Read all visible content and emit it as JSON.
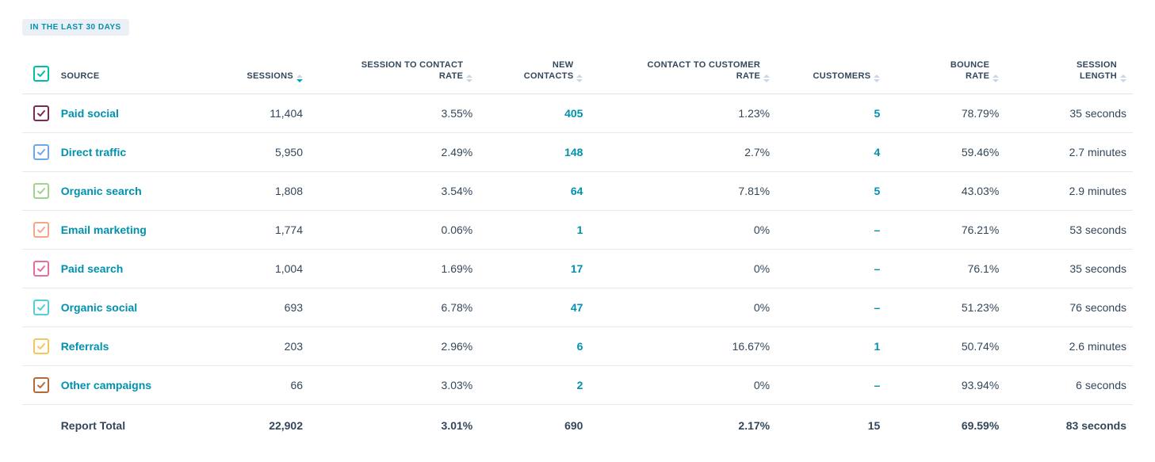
{
  "badge": "IN THE LAST 30 DAYS",
  "colors": {
    "link": "#0091ae",
    "text": "#33475b",
    "header_checkbox": "#00bda5",
    "badge_bg": "#eaf0f6"
  },
  "columns": [
    {
      "key": "checkbox",
      "label": ""
    },
    {
      "key": "source",
      "label": "SOURCE",
      "sortable": false
    },
    {
      "key": "sessions",
      "label": "SESSIONS",
      "sortable": true,
      "sorted": "desc"
    },
    {
      "key": "s2c",
      "label": "SESSION TO CONTACT RATE",
      "sortable": true
    },
    {
      "key": "new_contacts",
      "label": "NEW CONTACTS",
      "sortable": true
    },
    {
      "key": "c2c",
      "label": "CONTACT TO CUSTOMER RATE",
      "sortable": true
    },
    {
      "key": "customers",
      "label": "CUSTOMERS",
      "sortable": true
    },
    {
      "key": "bounce",
      "label": "BOUNCE RATE",
      "sortable": true
    },
    {
      "key": "slen",
      "label": "SESSION LENGTH",
      "sortable": true
    }
  ],
  "rows": [
    {
      "color": "#7c2a53",
      "source": "Paid social",
      "sessions": "11,404",
      "s2c": "3.55%",
      "new_contacts": "405",
      "c2c": "1.23%",
      "customers": "5",
      "bounce": "78.79%",
      "slen": "35 seconds"
    },
    {
      "color": "#6fa8ea",
      "source": "Direct traffic",
      "sessions": "5,950",
      "s2c": "2.49%",
      "new_contacts": "148",
      "c2c": "2.7%",
      "customers": "4",
      "bounce": "59.46%",
      "slen": "2.7 minutes"
    },
    {
      "color": "#a2d28f",
      "source": "Organic search",
      "sessions": "1,808",
      "s2c": "3.54%",
      "new_contacts": "64",
      "c2c": "7.81%",
      "customers": "5",
      "bounce": "43.03%",
      "slen": "2.9 minutes"
    },
    {
      "color": "#f5a689",
      "source": "Email marketing",
      "sessions": "1,774",
      "s2c": "0.06%",
      "new_contacts": "1",
      "c2c": "0%",
      "customers": "–",
      "bounce": "76.21%",
      "slen": "53 seconds"
    },
    {
      "color": "#e86ca0",
      "source": "Paid search",
      "sessions": "1,004",
      "s2c": "1.69%",
      "new_contacts": "17",
      "c2c": "0%",
      "customers": "–",
      "bounce": "76.1%",
      "slen": "35 seconds"
    },
    {
      "color": "#4fd1d9",
      "source": "Organic social",
      "sessions": "693",
      "s2c": "6.78%",
      "new_contacts": "47",
      "c2c": "0%",
      "customers": "–",
      "bounce": "51.23%",
      "slen": "76 seconds"
    },
    {
      "color": "#f2c75c",
      "source": "Referrals",
      "sessions": "203",
      "s2c": "2.96%",
      "new_contacts": "6",
      "c2c": "16.67%",
      "customers": "1",
      "bounce": "50.74%",
      "slen": "2.6 minutes"
    },
    {
      "color": "#b56a3e",
      "source": "Other campaigns",
      "sessions": "66",
      "s2c": "3.03%",
      "new_contacts": "2",
      "c2c": "0%",
      "customers": "–",
      "bounce": "93.94%",
      "slen": "6 seconds"
    }
  ],
  "total": {
    "label": "Report Total",
    "sessions": "22,902",
    "s2c": "3.01%",
    "new_contacts": "690",
    "c2c": "2.17%",
    "customers": "15",
    "bounce": "69.59%",
    "slen": "83 seconds"
  }
}
